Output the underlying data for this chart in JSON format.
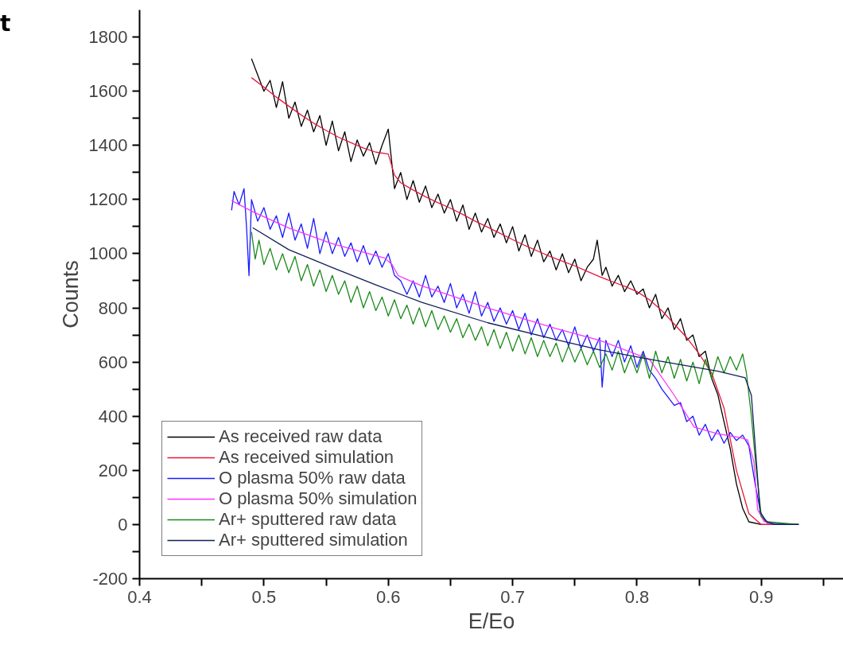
{
  "chart_data": {
    "type": "line",
    "xlabel": "E/Eo",
    "ylabel": "Counts",
    "annotations": [
      "t"
    ],
    "xlim": [
      0.4,
      0.966
    ],
    "ylim": [
      -200,
      1900
    ],
    "xticks": [
      0.4,
      {
        "value": 0.45,
        "label": null
      },
      0.5,
      {
        "value": 0.55,
        "label": null
      },
      0.6,
      {
        "value": 0.65,
        "label": null
      },
      0.7,
      {
        "value": 0.75,
        "label": null
      },
      0.8,
      {
        "value": 0.85,
        "label": null
      },
      0.9,
      {
        "value": 0.95,
        "label": null
      }
    ],
    "yticks": [
      -200,
      {
        "value": -100,
        "label": null
      },
      0,
      {
        "value": 100,
        "label": null
      },
      200,
      {
        "value": 300,
        "label": null
      },
      400,
      {
        "value": 500,
        "label": null
      },
      600,
      {
        "value": 700,
        "label": null
      },
      800,
      {
        "value": 900,
        "label": null
      },
      1000,
      {
        "value": 1100,
        "label": null
      },
      1200,
      {
        "value": 1300,
        "label": null
      },
      1400,
      {
        "value": 1500,
        "label": null
      },
      1600,
      {
        "value": 1700,
        "label": null
      },
      1800
    ],
    "grid": false,
    "legend": "bottom left",
    "marker": "none",
    "line_style": "solid",
    "series": [
      {
        "name": "As received raw data",
        "color": "#000000",
        "x": [
          0.49,
          0.495,
          0.5,
          0.505,
          0.51,
          0.515,
          0.52,
          0.525,
          0.53,
          0.535,
          0.54,
          0.545,
          0.55,
          0.555,
          0.56,
          0.565,
          0.57,
          0.575,
          0.58,
          0.585,
          0.59,
          0.595,
          0.6,
          0.605,
          0.61,
          0.615,
          0.62,
          0.625,
          0.63,
          0.635,
          0.64,
          0.645,
          0.65,
          0.655,
          0.66,
          0.665,
          0.67,
          0.675,
          0.68,
          0.685,
          0.69,
          0.695,
          0.7,
          0.705,
          0.71,
          0.715,
          0.72,
          0.725,
          0.73,
          0.735,
          0.74,
          0.745,
          0.75,
          0.755,
          0.76,
          0.765,
          0.768,
          0.772,
          0.775,
          0.78,
          0.785,
          0.79,
          0.795,
          0.8,
          0.805,
          0.81,
          0.815,
          0.82,
          0.825,
          0.83,
          0.835,
          0.84,
          0.845,
          0.85,
          0.855,
          0.86,
          0.865,
          0.87,
          0.875,
          0.88,
          0.885,
          0.89,
          0.9,
          0.93
        ],
        "values": [
          1720,
          1660,
          1600,
          1640,
          1540,
          1635,
          1500,
          1560,
          1470,
          1530,
          1450,
          1510,
          1400,
          1490,
          1380,
          1450,
          1340,
          1420,
          1360,
          1410,
          1330,
          1400,
          1460,
          1240,
          1300,
          1200,
          1270,
          1190,
          1250,
          1170,
          1220,
          1150,
          1200,
          1120,
          1180,
          1090,
          1150,
          1080,
          1130,
          1060,
          1110,
          1040,
          1100,
          1010,
          1070,
          990,
          1050,
          970,
          1010,
          940,
          1000,
          930,
          980,
          900,
          950,
          980,
          1050,
          920,
          950,
          880,
          920,
          860,
          900,
          850,
          870,
          800,
          850,
          760,
          800,
          720,
          760,
          680,
          700,
          620,
          640,
          540,
          480,
          380,
          280,
          150,
          60,
          10,
          0,
          0
        ]
      },
      {
        "name": "As received simulation",
        "color": "#e8183c",
        "x": [
          0.49,
          0.5,
          0.51,
          0.52,
          0.53,
          0.54,
          0.55,
          0.56,
          0.57,
          0.58,
          0.59,
          0.6,
          0.605,
          0.61,
          0.62,
          0.63,
          0.64,
          0.65,
          0.66,
          0.67,
          0.68,
          0.69,
          0.7,
          0.71,
          0.72,
          0.73,
          0.74,
          0.75,
          0.76,
          0.77,
          0.78,
          0.79,
          0.8,
          0.81,
          0.82,
          0.83,
          0.84,
          0.85,
          0.86,
          0.87,
          0.88,
          0.89,
          0.9,
          0.93
        ],
        "values": [
          1650,
          1615,
          1578,
          1545,
          1512,
          1482,
          1455,
          1430,
          1410,
          1390,
          1375,
          1368,
          1290,
          1262,
          1235,
          1210,
          1188,
          1168,
          1145,
          1120,
          1098,
          1075,
          1052,
          1030,
          1010,
          990,
          972,
          955,
          935,
          915,
          897,
          880,
          860,
          830,
          790,
          740,
          690,
          630,
          560,
          430,
          200,
          40,
          0,
          0
        ]
      },
      {
        "name": "O plasma 50% raw data",
        "color": "#1a1aff",
        "x": [
          0.474,
          0.476,
          0.48,
          0.484,
          0.486,
          0.488,
          0.49,
          0.495,
          0.5,
          0.505,
          0.51,
          0.515,
          0.52,
          0.525,
          0.53,
          0.535,
          0.54,
          0.545,
          0.55,
          0.555,
          0.56,
          0.565,
          0.57,
          0.575,
          0.58,
          0.585,
          0.59,
          0.595,
          0.6,
          0.605,
          0.61,
          0.615,
          0.62,
          0.625,
          0.63,
          0.635,
          0.64,
          0.645,
          0.65,
          0.655,
          0.66,
          0.665,
          0.67,
          0.675,
          0.68,
          0.685,
          0.69,
          0.695,
          0.7,
          0.705,
          0.71,
          0.715,
          0.72,
          0.725,
          0.73,
          0.735,
          0.74,
          0.745,
          0.75,
          0.755,
          0.76,
          0.765,
          0.77,
          0.772,
          0.775,
          0.78,
          0.785,
          0.79,
          0.795,
          0.8,
          0.805,
          0.81,
          0.815,
          0.82,
          0.825,
          0.83,
          0.835,
          0.84,
          0.845,
          0.85,
          0.855,
          0.86,
          0.865,
          0.87,
          0.875,
          0.88,
          0.885,
          0.89,
          0.895,
          0.9,
          0.905,
          0.93
        ],
        "values": [
          1160,
          1230,
          1180,
          1240,
          1100,
          919,
          1200,
          1120,
          1170,
          1090,
          1140,
          1060,
          1150,
          1050,
          1110,
          1020,
          1130,
          1000,
          1080,
          1000,
          1060,
          990,
          1040,
          970,
          1030,
          960,
          1010,
          950,
          1000,
          920,
          900,
          850,
          900,
          840,
          920,
          840,
          880,
          820,
          890,
          800,
          850,
          780,
          860,
          770,
          820,
          750,
          800,
          740,
          790,
          720,
          780,
          700,
          760,
          690,
          740,
          680,
          720,
          660,
          730,
          650,
          700,
          640,
          690,
          507,
          680,
          620,
          680,
          600,
          660,
          580,
          640,
          570,
          540,
          500,
          470,
          440,
          450,
          380,
          400,
          330,
          370,
          310,
          350,
          300,
          340,
          310,
          330,
          290,
          150,
          30,
          5,
          0
        ]
      },
      {
        "name": "O plasma 50% simulation",
        "color": "#ff33ff",
        "x": [
          0.474,
          0.491,
          0.52,
          0.555,
          0.597,
          0.603,
          0.608,
          0.627,
          0.68,
          0.734,
          0.77,
          0.81,
          0.83,
          0.846,
          0.865,
          0.883,
          0.889,
          0.894,
          0.897,
          0.902,
          0.91,
          0.93
        ],
        "values": [
          1196,
          1155,
          1095,
          1037,
          984,
          960,
          919,
          881,
          800,
          725,
          680,
          610,
          477,
          360,
          335,
          321,
          312,
          233,
          56,
          12,
          0,
          0
        ]
      },
      {
        "name": "Ar+ sputtered raw data",
        "color": "#1a8a1a",
        "x": [
          0.49,
          0.493,
          0.496,
          0.5,
          0.505,
          0.51,
          0.515,
          0.52,
          0.525,
          0.53,
          0.535,
          0.54,
          0.545,
          0.55,
          0.555,
          0.56,
          0.565,
          0.57,
          0.575,
          0.58,
          0.585,
          0.59,
          0.595,
          0.6,
          0.605,
          0.61,
          0.615,
          0.62,
          0.625,
          0.63,
          0.635,
          0.64,
          0.645,
          0.65,
          0.655,
          0.66,
          0.665,
          0.67,
          0.675,
          0.68,
          0.685,
          0.69,
          0.695,
          0.7,
          0.705,
          0.71,
          0.715,
          0.72,
          0.725,
          0.73,
          0.735,
          0.74,
          0.745,
          0.75,
          0.755,
          0.76,
          0.765,
          0.77,
          0.775,
          0.78,
          0.785,
          0.79,
          0.795,
          0.8,
          0.805,
          0.81,
          0.815,
          0.82,
          0.825,
          0.83,
          0.835,
          0.84,
          0.845,
          0.85,
          0.855,
          0.86,
          0.865,
          0.87,
          0.875,
          0.88,
          0.885,
          0.888,
          0.892,
          0.896,
          0.9,
          0.905,
          0.93
        ],
        "values": [
          1080,
          980,
          1050,
          960,
          1020,
          940,
          1000,
          930,
          990,
          900,
          960,
          880,
          940,
          860,
          920,
          850,
          900,
          820,
          880,
          800,
          860,
          790,
          840,
          770,
          830,
          760,
          810,
          740,
          800,
          730,
          790,
          720,
          770,
          710,
          760,
          690,
          740,
          680,
          730,
          660,
          720,
          650,
          710,
          640,
          700,
          630,
          690,
          620,
          680,
          620,
          670,
          600,
          660,
          600,
          650,
          590,
          640,
          580,
          630,
          570,
          640,
          560,
          620,
          560,
          630,
          540,
          640,
          560,
          620,
          540,
          610,
          530,
          600,
          520,
          610,
          540,
          620,
          560,
          620,
          570,
          630,
          560,
          400,
          200,
          30,
          10,
          0
        ]
      },
      {
        "name": "Ar+ sputtered simulation",
        "color": "#10205a",
        "x": [
          0.491,
          0.52,
          0.555,
          0.59,
          0.627,
          0.68,
          0.734,
          0.77,
          0.81,
          0.865,
          0.887,
          0.892,
          0.896,
          0.899,
          0.904,
          0.91,
          0.93
        ],
        "values": [
          1096,
          1015,
          949,
          885,
          820,
          745,
          684,
          645,
          610,
          566,
          542,
          477,
          233,
          47,
          12,
          0,
          0
        ]
      }
    ]
  }
}
